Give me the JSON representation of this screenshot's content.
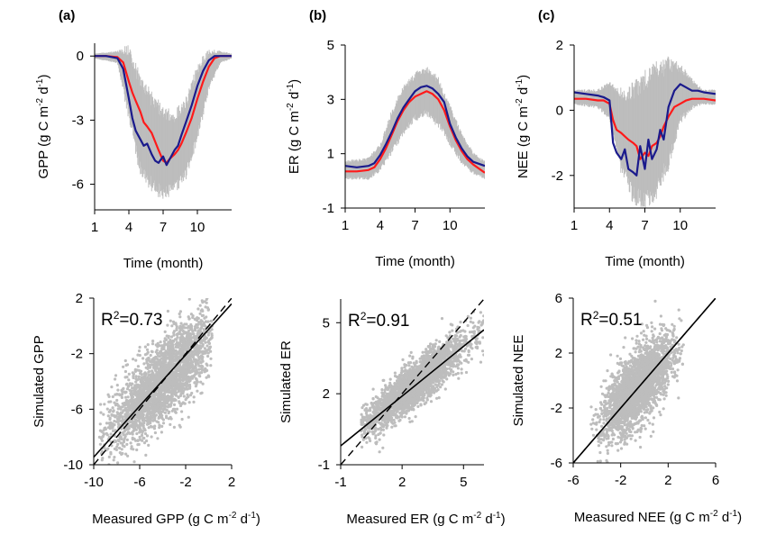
{
  "chart_data": [
    {
      "type": "line",
      "panel_label": "(a)",
      "xlabel": "Time (month)",
      "ylabel_main": "GPP (g C m",
      "ylabel_sup1": "-2",
      "ylabel_mid": " d",
      "ylabel_sup2": "-1",
      "ylabel_end": ")",
      "xlim": [
        1,
        13
      ],
      "ylim": [
        -7.2,
        0.6
      ],
      "xticks": [
        1,
        4,
        7,
        10
      ],
      "yticks": [
        0,
        -3,
        -6
      ],
      "colors": {
        "red": "#ff1a1a",
        "blue": "#1a1a8c",
        "band": "#bdbdbd"
      },
      "series": [
        {
          "x": [
            1,
            2,
            3,
            3.5,
            4,
            4.3,
            4.6,
            5,
            5.3,
            5.6,
            6,
            6.3,
            6.6,
            7,
            7.3,
            7.6,
            8,
            8.3,
            8.6,
            9,
            9.5,
            10,
            10.5,
            11,
            11.5,
            12,
            13
          ],
          "values": [
            0,
            0,
            -0.05,
            -0.3,
            -1.2,
            -1.7,
            -2.1,
            -2.6,
            -3.1,
            -3.3,
            -3.6,
            -4.0,
            -4.4,
            -4.9,
            -5.0,
            -4.8,
            -4.6,
            -4.4,
            -4.1,
            -3.6,
            -2.9,
            -2.0,
            -1.2,
            -0.5,
            -0.1,
            0,
            0
          ]
        },
        {
          "x": [
            1,
            2,
            3,
            3.5,
            4,
            4.3,
            4.6,
            5,
            5.3,
            5.6,
            6,
            6.3,
            6.6,
            7,
            7.3,
            7.6,
            8,
            8.3,
            8.6,
            9,
            9.5,
            10,
            10.5,
            11,
            11.5,
            12,
            13
          ],
          "values": [
            0,
            0,
            -0.1,
            -0.6,
            -2.0,
            -2.9,
            -3.5,
            -3.9,
            -4.2,
            -4.1,
            -4.6,
            -4.9,
            -5.0,
            -4.7,
            -5.1,
            -4.8,
            -4.4,
            -4.2,
            -3.7,
            -3.1,
            -2.3,
            -1.4,
            -0.7,
            -0.2,
            0,
            0,
            0
          ]
        }
      ],
      "band": {
        "x": [
          1,
          3,
          4,
          5,
          6,
          7,
          8,
          9,
          10,
          11,
          12,
          13
        ],
        "lower": [
          -0.1,
          -0.3,
          -2.8,
          -5.3,
          -6.0,
          -6.5,
          -6.2,
          -5.5,
          -3.8,
          -1.5,
          -0.3,
          -0.1
        ],
        "upper": [
          0.1,
          0.2,
          0.3,
          -1.2,
          -2.0,
          -2.6,
          -2.8,
          -2.2,
          -0.6,
          0.2,
          0.2,
          0.1
        ]
      }
    },
    {
      "type": "line",
      "panel_label": "(b)",
      "xlabel": "Time (month)",
      "ylabel_main": "ER (g C m",
      "ylabel_sup1": "-2",
      "ylabel_mid": " d",
      "ylabel_sup2": "-1",
      "ylabel_end": ")",
      "xlim": [
        1,
        13
      ],
      "ylim": [
        -1,
        5
      ],
      "xticks": [
        1,
        4,
        7,
        10
      ],
      "yticks": [
        5,
        3,
        1,
        -1
      ],
      "colors": {
        "red": "#ff1a1a",
        "blue": "#1a1a8c",
        "band": "#bdbdbd"
      },
      "series": [
        {
          "x": [
            1,
            2,
            3,
            3.5,
            4,
            4.5,
            5,
            5.5,
            6,
            6.5,
            7,
            7.5,
            8,
            8.5,
            9,
            9.5,
            10,
            10.5,
            11,
            11.5,
            12,
            13
          ],
          "values": [
            0.35,
            0.35,
            0.4,
            0.5,
            0.8,
            1.2,
            1.7,
            2.2,
            2.6,
            2.9,
            3.1,
            3.2,
            3.3,
            3.2,
            3.0,
            2.6,
            2.0,
            1.5,
            1.1,
            0.8,
            0.6,
            0.3
          ]
        },
        {
          "x": [
            1,
            2,
            3,
            3.5,
            4,
            4.5,
            5,
            5.5,
            6,
            6.5,
            7,
            7.5,
            8,
            8.5,
            9,
            9.5,
            10,
            10.5,
            11,
            11.5,
            12,
            13
          ],
          "values": [
            0.55,
            0.5,
            0.55,
            0.65,
            0.95,
            1.35,
            1.8,
            2.3,
            2.7,
            3.0,
            3.3,
            3.45,
            3.5,
            3.4,
            3.2,
            2.9,
            2.1,
            1.6,
            1.2,
            0.9,
            0.7,
            0.55
          ]
        }
      ],
      "band": {
        "x": [
          1,
          3,
          4,
          5,
          6,
          7,
          8,
          9,
          10,
          11,
          12,
          13
        ],
        "lower": [
          0.1,
          0.1,
          0.4,
          1.1,
          1.8,
          2.3,
          2.5,
          2.1,
          1.4,
          0.7,
          0.3,
          0.1
        ],
        "upper": [
          0.7,
          0.8,
          1.3,
          2.5,
          3.4,
          3.9,
          4.1,
          3.7,
          2.7,
          1.7,
          1.0,
          0.7
        ]
      }
    },
    {
      "type": "line",
      "panel_label": "(c)",
      "xlabel": "Time (month)",
      "ylabel_main": "NEE (g C m",
      "ylabel_sup1": "-2",
      "ylabel_mid": " d",
      "ylabel_sup2": "-1",
      "ylabel_end": ")",
      "xlim": [
        1,
        13
      ],
      "ylim": [
        -3,
        2
      ],
      "xticks": [
        1,
        4,
        7,
        10
      ],
      "yticks": [
        2,
        0,
        -2
      ],
      "colors": {
        "red": "#ff1a1a",
        "blue": "#1a1a8c",
        "band": "#bdbdbd"
      },
      "series": [
        {
          "x": [
            1,
            2,
            3,
            3.5,
            4,
            4.3,
            4.6,
            5,
            5.3,
            5.6,
            6,
            6.3,
            6.6,
            7,
            7.3,
            7.6,
            8,
            8.3,
            8.6,
            9,
            9.5,
            10,
            10.5,
            11,
            11.5,
            12,
            13
          ],
          "values": [
            0.35,
            0.35,
            0.3,
            0.3,
            0.2,
            -0.3,
            -0.6,
            -0.7,
            -0.8,
            -0.9,
            -1.0,
            -1.1,
            -1.5,
            -1.3,
            -1.4,
            -1.1,
            -1.0,
            -0.8,
            -0.5,
            -0.2,
            0.1,
            0.2,
            0.3,
            0.35,
            0.35,
            0.35,
            0.3
          ]
        },
        {
          "x": [
            1,
            2,
            3,
            3.5,
            4,
            4.3,
            4.6,
            5,
            5.3,
            5.6,
            6,
            6.3,
            6.6,
            7,
            7.3,
            7.6,
            8,
            8.3,
            8.6,
            9,
            9.5,
            10,
            10.5,
            11,
            11.5,
            12,
            13
          ],
          "values": [
            0.55,
            0.5,
            0.45,
            0.4,
            0.3,
            -1.0,
            -1.3,
            -1.5,
            -1.2,
            -1.8,
            -1.9,
            -2.0,
            -1.1,
            -1.8,
            -0.9,
            -1.5,
            -1.2,
            -0.6,
            -0.9,
            0.1,
            0.6,
            0.8,
            0.7,
            0.6,
            0.6,
            0.55,
            0.5
          ]
        }
      ],
      "band": {
        "x": [
          1,
          3,
          4,
          5,
          6,
          7,
          8,
          9,
          10,
          11,
          12,
          13
        ],
        "lower": [
          0.2,
          0.1,
          -0.2,
          -1.8,
          -2.6,
          -2.8,
          -2.4,
          -1.6,
          -0.3,
          0.1,
          0.2,
          0.2
        ],
        "upper": [
          0.6,
          0.6,
          0.8,
          0.5,
          0.6,
          0.9,
          1.2,
          1.4,
          1.3,
          0.9,
          0.6,
          0.6
        ]
      }
    },
    {
      "type": "scatter",
      "annotation": "R",
      "annotation_sup": "2",
      "annotation_value": "=0.73",
      "xlabel_main": "Measured GPP (g C m",
      "xlabel_sup1": "-2",
      "xlabel_mid": " d",
      "xlabel_sup2": "-1",
      "xlabel_end": ")",
      "ylabel": "Simulated GPP",
      "xlim": [
        -10,
        2
      ],
      "ylim": [
        -10,
        2
      ],
      "xticks": [
        -10,
        -6,
        -2,
        2
      ],
      "yticks": [
        2,
        -2,
        -6,
        -10
      ],
      "fit_line": {
        "slope": 0.92,
        "intercept": -0.25
      },
      "one_to_one": true,
      "cloud": {
        "x_mean": -4.0,
        "x_sd": 2.2,
        "y_sd": 1.4,
        "slope": 0.75,
        "intercept": -1.0,
        "n": 2600,
        "xmin": -9.5,
        "xmax": 0.3,
        "seed": 11
      }
    },
    {
      "type": "scatter",
      "annotation": "R",
      "annotation_sup": "2",
      "annotation_value": "=0.91",
      "xlabel_main": "Measured ER (g C m",
      "xlabel_sup1": "-2",
      "xlabel_mid": " d",
      "xlabel_sup2": "-1",
      "xlabel_end": ")",
      "ylabel": "Simulated ER",
      "xlim": [
        -1,
        6
      ],
      "ylim": [
        -1,
        6
      ],
      "xticks": [
        -1,
        2,
        5
      ],
      "yticks": [
        5,
        2,
        -1
      ],
      "fit_line": {
        "slope": 0.7,
        "intercept": 0.5
      },
      "one_to_one": true,
      "cloud": {
        "x_mean": 2.6,
        "x_sd": 1.3,
        "y_sd": 0.45,
        "slope": 0.7,
        "intercept": 0.55,
        "n": 2600,
        "xmin": 0.0,
        "xmax": 6.0,
        "seed": 23
      }
    },
    {
      "type": "scatter",
      "annotation": "R",
      "annotation_sup": "2",
      "annotation_value": "=0.51",
      "xlabel_main": "Measured NEE (g C m",
      "xlabel_sup1": "-2",
      "xlabel_mid": " d",
      "xlabel_sup2": "-1",
      "xlabel_end": ")",
      "ylabel": "Simulated NEE",
      "xlim": [
        -6,
        6
      ],
      "ylim": [
        -6,
        6
      ],
      "xticks": [
        -6,
        -2,
        2,
        6
      ],
      "yticks": [
        6,
        2,
        -2,
        -6
      ],
      "fit_line": {
        "slope": 1.0,
        "intercept": 0.0
      },
      "one_to_one": true,
      "cloud": {
        "x_mean": -0.6,
        "x_sd": 1.4,
        "y_sd": 1.3,
        "slope": 0.8,
        "intercept": -0.1,
        "n": 2600,
        "xmin": -4.5,
        "xmax": 3.5,
        "seed": 37
      }
    }
  ]
}
